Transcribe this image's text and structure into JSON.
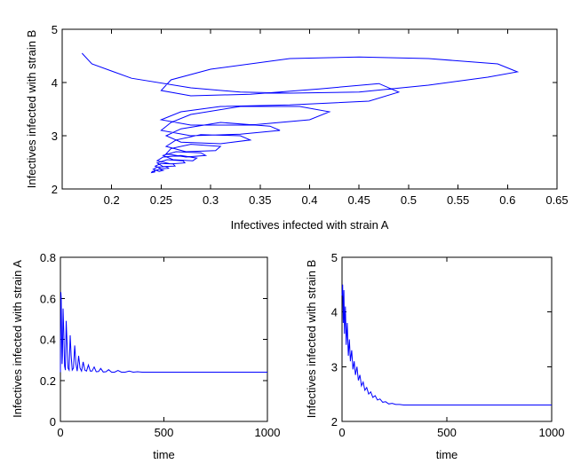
{
  "chart_data": [
    {
      "type": "line",
      "title": "",
      "xlabel": "Infectives infected with strain A",
      "ylabel": "Infectives infected with strain B",
      "xlim": [
        0.15,
        0.65
      ],
      "ylim": [
        2,
        5
      ],
      "xticks": [
        0.2,
        0.25,
        0.3,
        0.35,
        0.4,
        0.45,
        0.5,
        0.55,
        0.6,
        0.65
      ],
      "xtick_labels": [
        "0.2",
        "0.25",
        "0.3",
        "0.35",
        "0.4",
        "0.45",
        "0.5",
        "0.55",
        "0.6",
        "0.65"
      ],
      "yticks": [
        2,
        3,
        4,
        5
      ],
      "ytick_labels": [
        "2",
        "3",
        "4",
        "5"
      ],
      "grid": false,
      "series": [
        {
          "color": "#0000ff",
          "x": [
            0.17,
            0.18,
            0.22,
            0.28,
            0.33,
            0.38,
            0.45,
            0.52,
            0.58,
            0.61,
            0.59,
            0.52,
            0.45,
            0.38,
            0.3,
            0.26,
            0.25,
            0.28,
            0.34,
            0.41,
            0.47,
            0.49,
            0.46,
            0.38,
            0.31,
            0.27,
            0.25,
            0.28,
            0.34,
            0.4,
            0.42,
            0.39,
            0.33,
            0.28,
            0.26,
            0.25,
            0.28,
            0.33,
            0.37,
            0.36,
            0.31,
            0.27,
            0.255,
            0.27,
            0.31,
            0.34,
            0.33,
            0.29,
            0.265,
            0.255,
            0.275,
            0.305,
            0.31,
            0.28,
            0.26,
            0.255,
            0.275,
            0.295,
            0.29,
            0.265,
            0.252,
            0.262,
            0.282,
            0.286,
            0.27,
            0.252,
            0.246,
            0.26,
            0.274,
            0.272,
            0.256,
            0.246,
            0.252,
            0.264,
            0.262,
            0.25,
            0.244,
            0.25,
            0.258,
            0.254,
            0.246,
            0.242,
            0.248,
            0.252,
            0.248,
            0.243,
            0.241,
            0.244,
            0.241,
            0.24
          ],
          "y": [
            4.55,
            4.35,
            4.08,
            3.9,
            3.82,
            3.8,
            3.82,
            3.95,
            4.1,
            4.2,
            4.35,
            4.45,
            4.48,
            4.45,
            4.25,
            4.05,
            3.85,
            3.75,
            3.78,
            3.88,
            3.98,
            3.82,
            3.65,
            3.58,
            3.55,
            3.45,
            3.3,
            3.2,
            3.2,
            3.3,
            3.45,
            3.55,
            3.55,
            3.4,
            3.25,
            3.1,
            3.0,
            3.03,
            3.1,
            3.18,
            3.25,
            3.13,
            3.0,
            2.88,
            2.85,
            2.92,
            3.0,
            3.02,
            2.92,
            2.8,
            2.7,
            2.72,
            2.8,
            2.84,
            2.76,
            2.66,
            2.6,
            2.63,
            2.68,
            2.7,
            2.63,
            2.55,
            2.53,
            2.58,
            2.63,
            2.6,
            2.53,
            2.47,
            2.49,
            2.53,
            2.55,
            2.49,
            2.42,
            2.43,
            2.47,
            2.48,
            2.43,
            2.38,
            2.39,
            2.42,
            2.41,
            2.37,
            2.33,
            2.35,
            2.37,
            2.34,
            2.31,
            2.32,
            2.33,
            2.3
          ]
        }
      ]
    },
    {
      "type": "line",
      "title": "",
      "xlabel": "time",
      "ylabel": "Infectives infected with strain A",
      "xlim": [
        0,
        1000
      ],
      "ylim": [
        0,
        0.8
      ],
      "xticks": [
        0,
        500,
        1000
      ],
      "xtick_labels": [
        "0",
        "500",
        "1000"
      ],
      "yticks": [
        0,
        0.2,
        0.4,
        0.6,
        0.8
      ],
      "ytick_labels": [
        "0",
        "0.2",
        "0.4",
        "0.6",
        "0.8"
      ],
      "grid": false,
      "series": [
        {
          "color": "#0000ff",
          "x": [
            0,
            2,
            4,
            6,
            8,
            10,
            13,
            16,
            20,
            24,
            28,
            32,
            37,
            42,
            47,
            52,
            57,
            63,
            69,
            75,
            81,
            88,
            95,
            102,
            110,
            118,
            126,
            135,
            144,
            153,
            163,
            173,
            184,
            195,
            207,
            220,
            233,
            247,
            262,
            278,
            295,
            313,
            332,
            352,
            373,
            395,
            1000
          ],
          "y": [
            0.24,
            0.63,
            0.6,
            0.42,
            0.28,
            0.32,
            0.55,
            0.45,
            0.27,
            0.25,
            0.49,
            0.38,
            0.26,
            0.25,
            0.42,
            0.32,
            0.25,
            0.26,
            0.37,
            0.28,
            0.245,
            0.32,
            0.26,
            0.245,
            0.29,
            0.25,
            0.245,
            0.275,
            0.245,
            0.245,
            0.265,
            0.242,
            0.243,
            0.258,
            0.241,
            0.242,
            0.252,
            0.24,
            0.24,
            0.248,
            0.24,
            0.24,
            0.245,
            0.24,
            0.242,
            0.24,
            0.24
          ]
        }
      ]
    },
    {
      "type": "line",
      "title": "",
      "xlabel": "time",
      "ylabel": "Infectives infected with strain B",
      "xlim": [
        0,
        1000
      ],
      "ylim": [
        2,
        5
      ],
      "xticks": [
        0,
        500,
        1000
      ],
      "xtick_labels": [
        "0",
        "500",
        "1000"
      ],
      "yticks": [
        2,
        3,
        4,
        5
      ],
      "ytick_labels": [
        "2",
        "3",
        "4",
        "5"
      ],
      "grid": false,
      "series": [
        {
          "color": "#0000ff",
          "x": [
            0,
            3,
            6,
            9,
            12,
            16,
            20,
            25,
            30,
            35,
            40,
            46,
            52,
            58,
            64,
            71,
            78,
            85,
            93,
            101,
            109,
            118,
            127,
            137,
            147,
            158,
            169,
            181,
            194,
            208,
            223,
            239,
            256,
            274,
            294,
            316,
            340,
            366,
            395,
            1000
          ],
          "y": [
            4.3,
            4.5,
            3.8,
            4.4,
            3.6,
            4.1,
            3.4,
            3.8,
            3.2,
            3.5,
            3.1,
            3.3,
            2.95,
            3.1,
            2.85,
            3.0,
            2.75,
            2.85,
            2.65,
            2.72,
            2.57,
            2.62,
            2.5,
            2.54,
            2.44,
            2.47,
            2.39,
            2.41,
            2.35,
            2.36,
            2.32,
            2.33,
            2.31,
            2.31,
            2.3,
            2.3,
            2.3,
            2.3,
            2.3,
            2.3
          ]
        }
      ]
    }
  ]
}
